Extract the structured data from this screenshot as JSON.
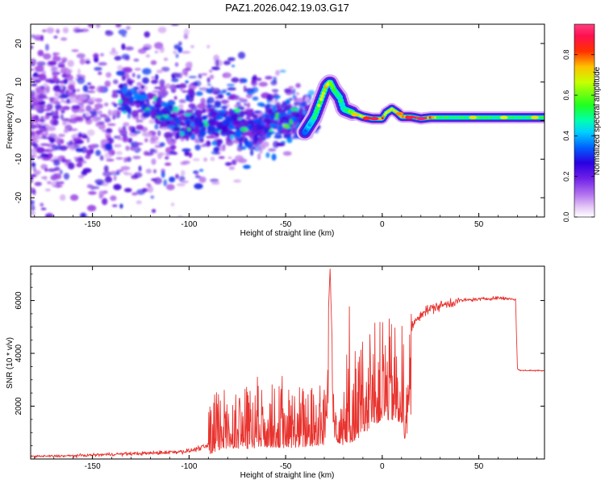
{
  "figure": {
    "title": "PAZ1.2026.042.19.03.G17"
  },
  "colors": {
    "snr_line": "#e8332e",
    "axis": "#000000",
    "background": "#ffffff"
  },
  "chart_data": [
    {
      "type": "heatmap",
      "title": "PAZ1.2026.042.19.03.G17",
      "xlabel": "Height of straight line (km)",
      "ylabel": "Frequency (Hz)",
      "xlim": [
        -182,
        84
      ],
      "ylim": [
        -25,
        25
      ],
      "xticks": [
        -150,
        -100,
        -50,
        0,
        50
      ],
      "yticks": [
        -20,
        -10,
        0,
        10,
        20
      ],
      "colorbar": {
        "label": "Normalized spectral amplitude",
        "range": [
          0,
          0.95
        ],
        "ticks": [
          "0.0",
          "0.2",
          "0.4",
          "0.6",
          "0.8"
        ],
        "colormap": [
          "#ffffff",
          "#c58ff0",
          "#8b2be0",
          "#3a00d8",
          "#0058ff",
          "#00d8ff",
          "#00ff80",
          "#40ff00",
          "#d8ff00",
          "#ffb000",
          "#ff2000",
          "#ff2070"
        ]
      },
      "ridge": {
        "height_km": [
          -40,
          -35,
          -32,
          -29,
          -27,
          -25,
          -22,
          -20,
          -15,
          -10,
          -5,
          0,
          2,
          5,
          8,
          10,
          15,
          20,
          25,
          30,
          40,
          50,
          60,
          70,
          84
        ],
        "frequency_hz": [
          -3,
          1,
          5,
          9,
          10,
          8,
          6,
          3,
          2,
          1,
          0.5,
          0.5,
          2,
          3,
          2,
          1,
          1,
          0.5,
          0.8,
          0.8,
          0.8,
          0.8,
          0.8,
          0.8,
          0.8
        ],
        "peak_amplitude": [
          0.35,
          0.55,
          0.7,
          0.75,
          0.65,
          0.6,
          0.55,
          0.5,
          0.7,
          0.8,
          0.9,
          0.85,
          0.75,
          0.7,
          0.8,
          0.85,
          0.9,
          0.95,
          0.85,
          0.6,
          0.55,
          0.6,
          0.55,
          0.55,
          0.6
        ]
      }
    },
    {
      "type": "line",
      "xlabel": "Height of straight line (km)",
      "ylabel": "SNR (10 * v/v)",
      "xlim": [
        -182,
        84
      ],
      "ylim": [
        0,
        7300
      ],
      "xticks": [
        -150,
        -100,
        -50,
        0,
        50
      ],
      "yticks": [
        2000,
        4000,
        6000
      ],
      "series": [
        {
          "name": "SNR",
          "x": [
            -182,
            -160,
            -140,
            -120,
            -100,
            -90,
            -85,
            -80,
            -70,
            -60,
            -50,
            -40,
            -30,
            -27,
            -25,
            -20,
            -15,
            -10,
            -5,
            0,
            5,
            10,
            12,
            15,
            20,
            25,
            30,
            40,
            50,
            60,
            69,
            70,
            72,
            84
          ],
          "y": [
            100,
            120,
            180,
            220,
            300,
            500,
            900,
            1200,
            1100,
            1300,
            1200,
            1300,
            1500,
            7200,
            2000,
            1500,
            1900,
            2600,
            3600,
            4200,
            4200,
            3900,
            1800,
            5000,
            5500,
            5700,
            5800,
            6000,
            6050,
            6100,
            6050,
            3400,
            3350,
            3350
          ]
        }
      ]
    }
  ]
}
